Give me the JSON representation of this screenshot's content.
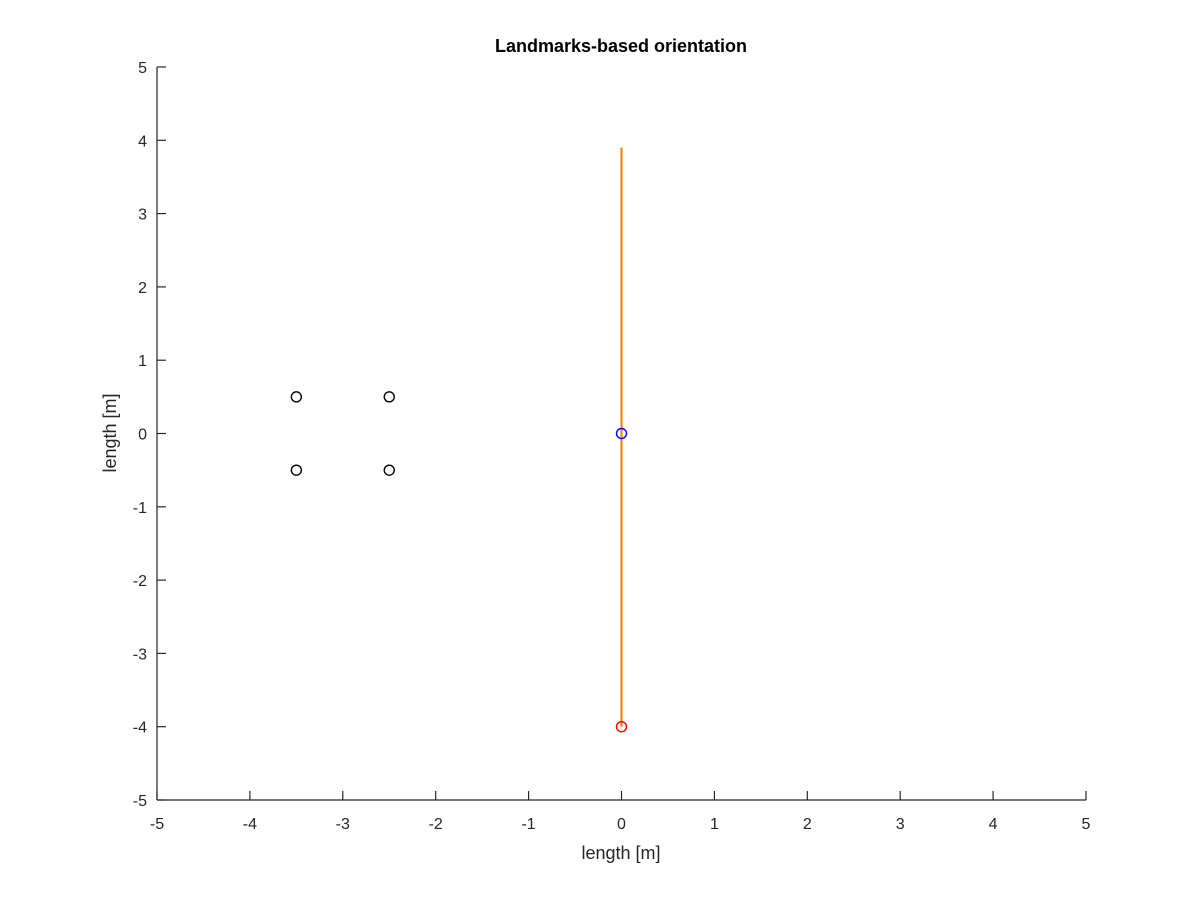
{
  "chart_data": {
    "type": "scatter",
    "title": "Landmarks-based orientation",
    "xlabel": "length [m]",
    "ylabel": "length [m]",
    "xlim": [
      -5,
      5
    ],
    "ylim": [
      -5,
      5
    ],
    "xticks": [
      -5,
      -4,
      -3,
      -2,
      -1,
      0,
      1,
      2,
      3,
      4,
      5
    ],
    "yticks": [
      -5,
      -4,
      -3,
      -2,
      -1,
      0,
      1,
      2,
      3,
      4,
      5
    ],
    "grid": false,
    "series": [
      {
        "kind": "markers",
        "marker": "circle",
        "color": "#000000",
        "points": [
          [
            -3.5,
            0.5
          ],
          [
            -2.5,
            0.5
          ],
          [
            -3.5,
            -0.5
          ],
          [
            -2.5,
            -0.5
          ]
        ]
      },
      {
        "kind": "line",
        "color": "#EE7F00",
        "points": [
          [
            0,
            -4
          ],
          [
            0,
            3.9
          ]
        ]
      },
      {
        "kind": "markers",
        "marker": "circle",
        "color": "#0000FF",
        "points": [
          [
            0,
            0
          ]
        ]
      },
      {
        "kind": "markers",
        "marker": "circle",
        "color": "#FF0000",
        "points": [
          [
            0,
            -4
          ]
        ]
      }
    ]
  }
}
